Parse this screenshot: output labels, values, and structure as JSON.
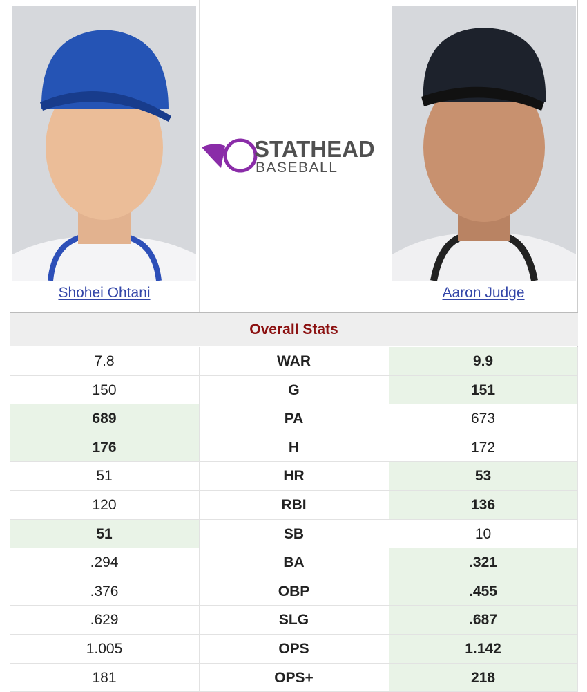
{
  "players": [
    {
      "name": "Shohei Ohtani"
    },
    {
      "name": "Aaron Judge"
    }
  ],
  "logo": {
    "brand": "STATHEAD",
    "sport": "BASEBALL"
  },
  "section_title": "Overall Stats",
  "rows": [
    {
      "stat": "WAR",
      "left": "7.8",
      "right": "9.9",
      "leader": "right"
    },
    {
      "stat": "G",
      "left": "150",
      "right": "151",
      "leader": "right"
    },
    {
      "stat": "PA",
      "left": "689",
      "right": "673",
      "leader": "left"
    },
    {
      "stat": "H",
      "left": "176",
      "right": "172",
      "leader": "left"
    },
    {
      "stat": "HR",
      "left": "51",
      "right": "53",
      "leader": "right"
    },
    {
      "stat": "RBI",
      "left": "120",
      "right": "136",
      "leader": "right"
    },
    {
      "stat": "SB",
      "left": "51",
      "right": "10",
      "leader": "left"
    },
    {
      "stat": "BA",
      "left": ".294",
      "right": ".321",
      "leader": "right"
    },
    {
      "stat": "OBP",
      "left": ".376",
      "right": ".455",
      "leader": "right"
    },
    {
      "stat": "SLG",
      "left": ".629",
      "right": ".687",
      "leader": "right"
    },
    {
      "stat": "OPS",
      "left": "1.005",
      "right": "1.142",
      "leader": "right"
    },
    {
      "stat": "OPS+",
      "left": "181",
      "right": "218",
      "leader": "right"
    }
  ]
}
